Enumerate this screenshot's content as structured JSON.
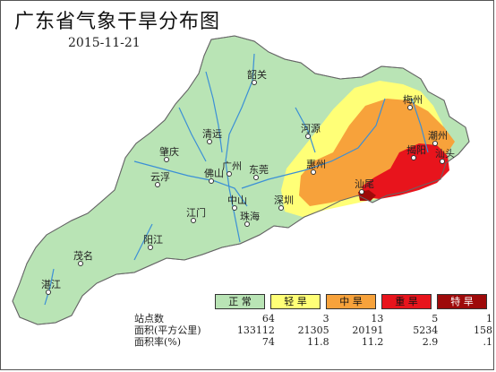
{
  "title": "广东省气象干旱分布图",
  "date": "2015-11-21",
  "colors": {
    "normal": "#b9e4b5",
    "light": "#ffff77",
    "moderate": "#f7a23b",
    "severe": "#e8141c",
    "extreme": "#9e0a0a",
    "river": "#3b8fd6"
  },
  "cities": [
    {
      "name": "韶关"
    },
    {
      "name": "梅州"
    },
    {
      "name": "清远"
    },
    {
      "name": "河源"
    },
    {
      "name": "潮州"
    },
    {
      "name": "肇庆"
    },
    {
      "name": "揭阳"
    },
    {
      "name": "汕头"
    },
    {
      "name": "惠州"
    },
    {
      "name": "佛山"
    },
    {
      "name": "广州"
    },
    {
      "name": "东莞"
    },
    {
      "name": "汕尾"
    },
    {
      "name": "云浮"
    },
    {
      "name": "深圳"
    },
    {
      "name": "中山"
    },
    {
      "name": "江门"
    },
    {
      "name": "珠海"
    },
    {
      "name": "阳江"
    },
    {
      "name": "茂名"
    },
    {
      "name": "湛江"
    }
  ],
  "legend": {
    "items": [
      {
        "label": "正 常",
        "key": "normal"
      },
      {
        "label": "轻 旱",
        "key": "light"
      },
      {
        "label": "中 旱",
        "key": "moderate"
      },
      {
        "label": "重 旱",
        "key": "severe"
      },
      {
        "label": "特 旱",
        "key": "extreme"
      }
    ]
  },
  "stats": {
    "rows": [
      {
        "label": "站点数",
        "values": [
          "64",
          "3",
          "13",
          "5",
          "1"
        ]
      },
      {
        "label": "面积(平方公里)",
        "values": [
          "133112",
          "21305",
          "20191",
          "5234",
          "158"
        ]
      },
      {
        "label": "面积率(%)",
        "values": [
          "74",
          "11.8",
          "11.2",
          "2.9",
          ".1"
        ]
      }
    ]
  }
}
